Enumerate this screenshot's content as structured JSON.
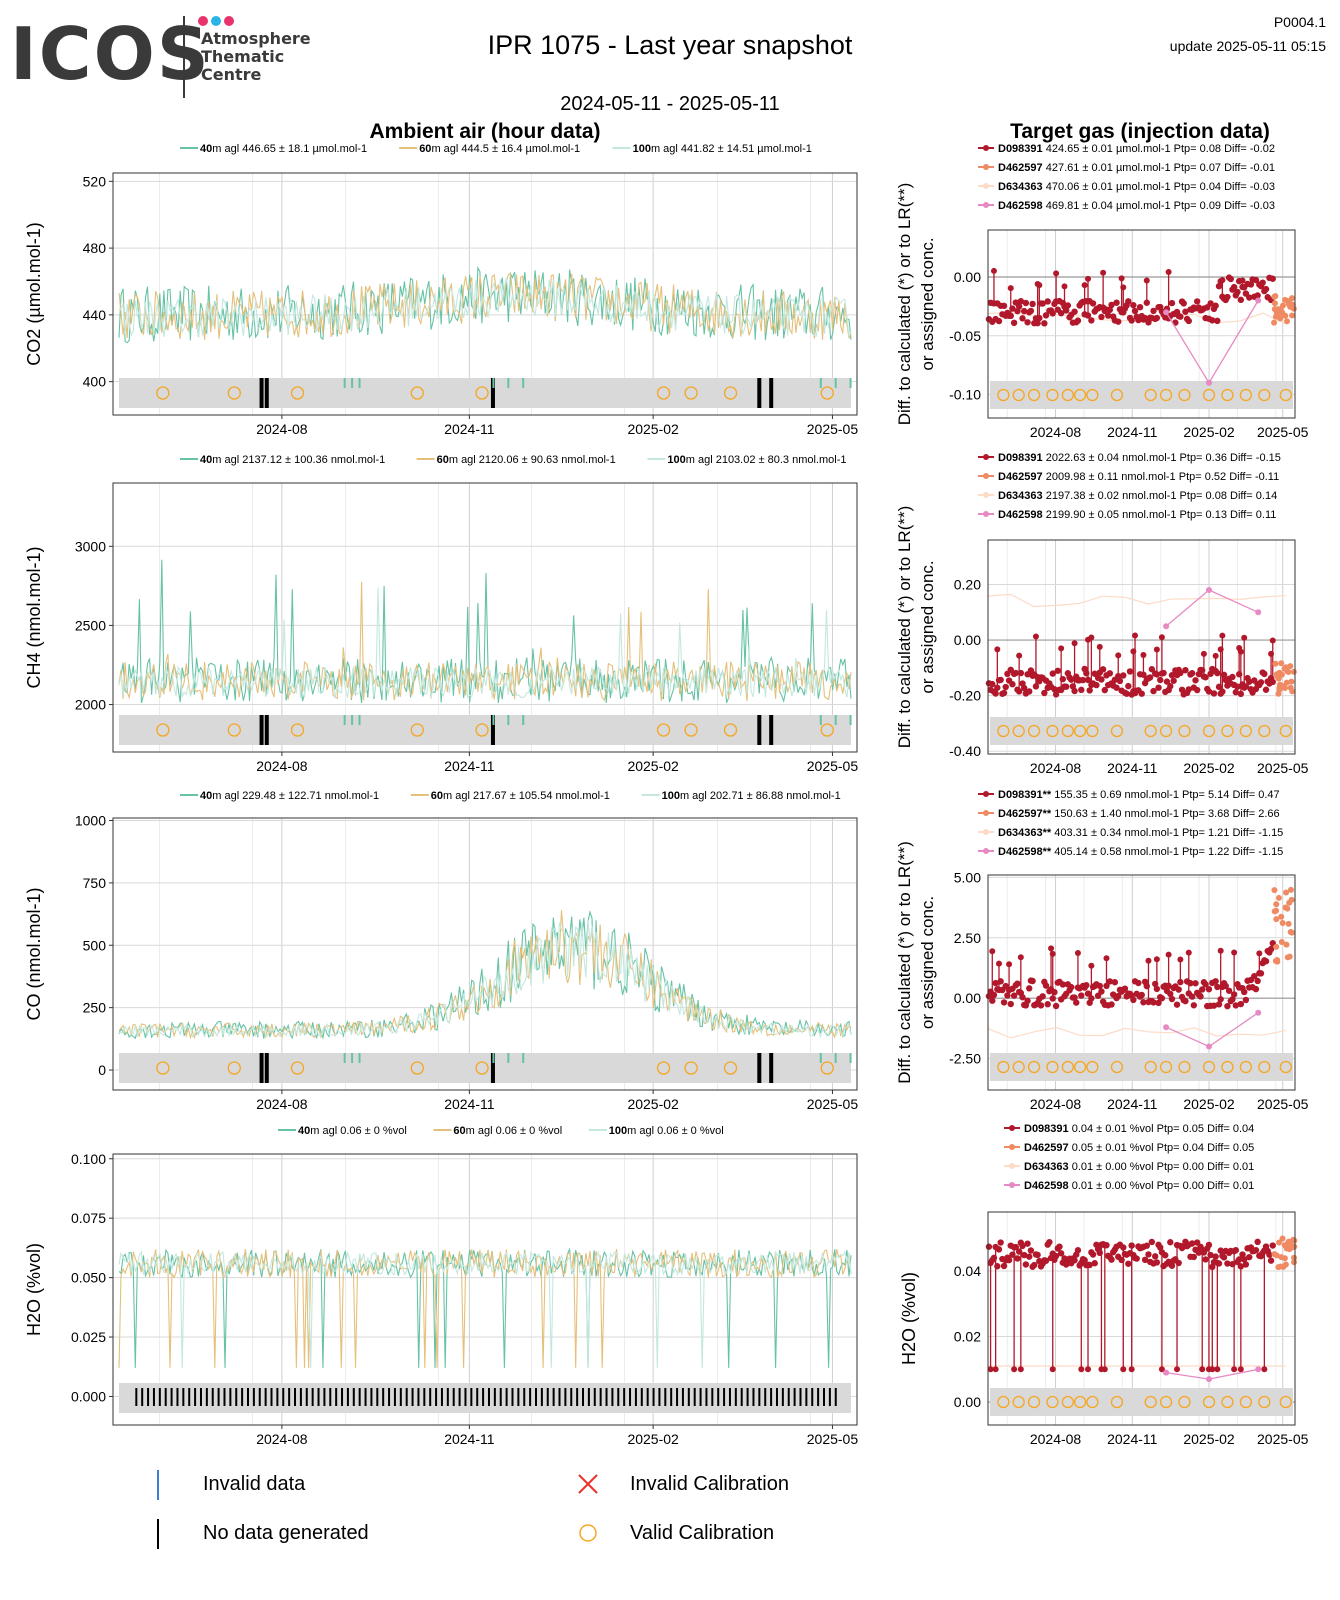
{
  "header": {
    "logo_text": "ICOS",
    "logo_sub_1": "Atmosphere",
    "logo_sub_2": "Thematic",
    "logo_sub_3": "Centre",
    "logo_dot_colors": [
      "#e8336b",
      "#2ab4e8",
      "#e8336b"
    ],
    "title": "IPR 1075 - Last year snapshot",
    "date_range": "2024-05-11 - 2025-05-11",
    "code": "P0004.1",
    "update": "update  2025-05-11 05:15"
  },
  "sections": {
    "left_title": "Ambient air (hour data)",
    "right_title": "Target gas (injection data)"
  },
  "colors": {
    "c40": "#66c2a5",
    "c60": "#e5c07b",
    "c100": "#c4e8df",
    "d098391": "#b2182b",
    "d462597": "#ef8a62",
    "d634363": "#fddbc7",
    "d462598": "#e78ac3",
    "calib": "#f5a623",
    "band": "#d9d9d9"
  },
  "xticks": [
    "2024-08",
    "2024-11",
    "2025-02",
    "2025-05"
  ],
  "right_ylabel": "Diff. to calculated (*) or to LR(**) or assigned conc.",
  "chart_data": [
    {
      "type": "line",
      "panel": "ambient",
      "ylabel": "CO2 (µmol.mol-1)",
      "ylim": [
        380,
        525
      ],
      "yticks": [
        400,
        440,
        480,
        520
      ],
      "mean": 440,
      "amplitude": 30,
      "legend": [
        {
          "name": "40m agl",
          "text": "446.65 ± 18.1 µmol.mol-1"
        },
        {
          "name": "60m agl",
          "text": "444.5 ± 16.4 µmol.mol-1"
        },
        {
          "name": "100m agl",
          "text": "441.82 ± 14.51 µmol.mol-1"
        }
      ]
    },
    {
      "type": "line",
      "panel": "ambient",
      "ylabel": "CH4 (nmol.mol-1)",
      "ylim": [
        1700,
        3400
      ],
      "yticks": [
        2000,
        2500,
        3000
      ],
      "mean": 2110,
      "amplitude": 250,
      "legend": [
        {
          "name": "40m agl",
          "text": "2137.12 ± 100.36 nmol.mol-1"
        },
        {
          "name": "60m agl",
          "text": "2120.06 ± 90.63 nmol.mol-1"
        },
        {
          "name": "100m agl",
          "text": "2103.02 ± 80.3 nmol.mol-1"
        }
      ]
    },
    {
      "type": "line",
      "panel": "ambient",
      "ylabel": "CO (nmol.mol-1)",
      "ylim": [
        -80,
        1010
      ],
      "yticks": [
        0,
        250,
        500,
        750,
        1000
      ],
      "mean": 210,
      "amplitude": 180,
      "legend": [
        {
          "name": "40m agl",
          "text": "229.48 ± 122.71 nmol.mol-1"
        },
        {
          "name": "60m agl",
          "text": "217.67 ± 105.54 nmol.mol-1"
        },
        {
          "name": "100m agl",
          "text": "202.71 ± 86.88 nmol.mol-1"
        }
      ]
    },
    {
      "type": "line",
      "panel": "ambient",
      "ylabel": "H2O (%vol)",
      "ylim": [
        -0.012,
        0.102
      ],
      "yticks": [
        0.0,
        0.025,
        0.05,
        0.075,
        0.1
      ],
      "mean": 0.056,
      "amplitude": 0.006,
      "legend": [
        {
          "name": "40m agl",
          "text": "0.06 ± 0 %vol"
        },
        {
          "name": "60m agl",
          "text": "0.06 ± 0 %vol"
        },
        {
          "name": "100m agl",
          "text": "0.06 ± 0 %vol"
        }
      ]
    },
    {
      "type": "scatter",
      "panel": "target",
      "ylim": [
        -0.12,
        0.04
      ],
      "yticks": [
        0.0,
        -0.05,
        -0.1
      ],
      "mean": -0.03,
      "legend": [
        {
          "name": "D098391",
          "text": "424.65 ± 0.01 µmol.mol-1 Ptp= 0.08 Diff= -0.02"
        },
        {
          "name": "D462597",
          "text": "427.61 ± 0.01 µmol.mol-1 Ptp= 0.07 Diff= -0.01"
        },
        {
          "name": "D634363",
          "text": "470.06 ± 0.01 µmol.mol-1 Ptp= 0.04 Diff= -0.03"
        },
        {
          "name": "D462598",
          "text": "469.81 ± 0.04 µmol.mol-1 Ptp= 0.09 Diff= -0.03"
        }
      ]
    },
    {
      "type": "scatter",
      "panel": "target",
      "ylim": [
        -0.41,
        0.36
      ],
      "yticks": [
        0.2,
        0.0,
        -0.2,
        -0.4
      ],
      "mean": -0.15,
      "legend": [
        {
          "name": "D098391",
          "text": "2022.63 ± 0.04 nmol.mol-1 Ptp= 0.36 Diff= -0.15"
        },
        {
          "name": "D462597",
          "text": "2009.98 ± 0.11 nmol.mol-1 Ptp= 0.52 Diff= -0.11"
        },
        {
          "name": "D634363",
          "text": "2197.38 ± 0.02 nmol.mol-1 Ptp= 0.08 Diff= 0.14"
        },
        {
          "name": "D462598",
          "text": "2199.90 ± 0.05 nmol.mol-1 Ptp= 0.13 Diff= 0.11"
        }
      ]
    },
    {
      "type": "scatter",
      "panel": "target",
      "ylim": [
        -3.8,
        5.1
      ],
      "yticks": [
        5.0,
        2.5,
        0.0,
        -2.5
      ],
      "mean": 0.2,
      "legend": [
        {
          "name": "D098391**",
          "text": "155.35 ± 0.69 nmol.mol-1 Ptp= 5.14 Diff= 0.47"
        },
        {
          "name": "D462597**",
          "text": "150.63 ± 1.40 nmol.mol-1 Ptp= 3.68 Diff= 2.66"
        },
        {
          "name": "D634363**",
          "text": "403.31 ± 0.34 nmol.mol-1 Ptp= 1.21 Diff= -1.15"
        },
        {
          "name": "D462598**",
          "text": "405.14 ± 0.58 nmol.mol-1 Ptp= 1.22 Diff= -1.15"
        }
      ]
    },
    {
      "type": "scatter",
      "panel": "target",
      "ylabel": "H2O (%vol)",
      "ylim": [
        -0.007,
        0.058
      ],
      "yticks": [
        0.04,
        0.02,
        0.0
      ],
      "mean": 0.045,
      "legend": [
        {
          "name": "D098391",
          "text": "0.04 ± 0.01 %vol Ptp= 0.05 Diff= 0.04"
        },
        {
          "name": "D462597",
          "text": "0.05 ± 0.01 %vol Ptp= 0.04 Diff= 0.05"
        },
        {
          "name": "D634363",
          "text": "0.01 ± 0.00 %vol Ptp= 0.00 Diff= 0.01"
        },
        {
          "name": "D462598",
          "text": "0.01 ± 0.00 %vol Ptp= 0.00 Diff= 0.01"
        }
      ]
    }
  ],
  "bottom_legend": {
    "invalid_data": "Invalid data",
    "no_data": "No data generated",
    "invalid_calibration": "Invalid Calibration",
    "valid_calibration": "Valid Calibration"
  }
}
